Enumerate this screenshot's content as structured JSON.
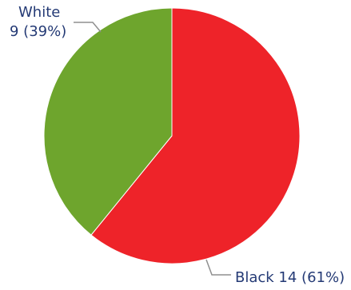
{
  "chart_data": {
    "type": "pie",
    "slices": [
      {
        "label": "Black",
        "value": 14,
        "percent": "61%",
        "color": "#ee2329"
      },
      {
        "label": "White",
        "value": 9,
        "percent": "39%",
        "color": "#6ea52d"
      }
    ],
    "labels": {
      "white_line1": "White",
      "white_line2": "9 (39%)",
      "black_line1": "Black 14 (61%)"
    },
    "colors": {
      "text": "#243a75",
      "leader": "#8f8f8f"
    }
  }
}
